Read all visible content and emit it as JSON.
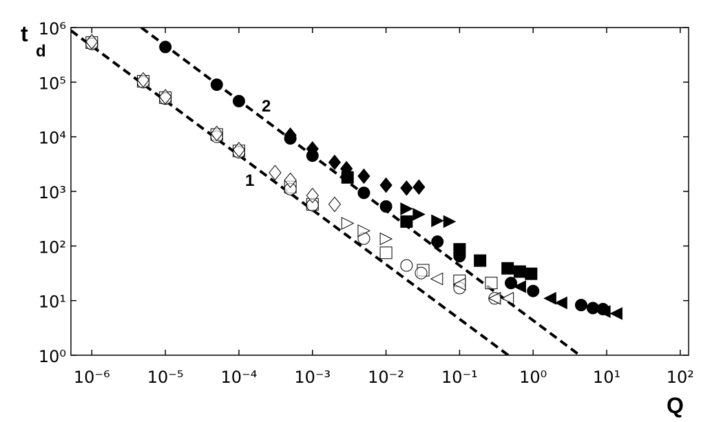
{
  "chart_data": {
    "type": "scatter",
    "xlabel": "Q",
    "ylabel": "t",
    "ylabel_sub": "d",
    "xscale": "log",
    "yscale": "log",
    "grid": false,
    "xlim": [
      5.2e-07,
      130
    ],
    "ylim": [
      1,
      1000000
    ],
    "xticks": [
      {
        "value": 1e-06,
        "label": "10⁻⁶"
      },
      {
        "value": 1e-05,
        "label": "10⁻⁵"
      },
      {
        "value": 0.0001,
        "label": "10⁻⁴"
      },
      {
        "value": 0.001,
        "label": "10⁻³"
      },
      {
        "value": 0.01,
        "label": "10⁻²"
      },
      {
        "value": 0.1,
        "label": "10⁻¹"
      },
      {
        "value": 1,
        "label": "10⁰"
      },
      {
        "value": 10,
        "label": "10¹"
      },
      {
        "value": 100,
        "label": "10²"
      }
    ],
    "yticks": [
      {
        "value": 1,
        "label": "10⁰"
      },
      {
        "value": 10,
        "label": "10¹"
      },
      {
        "value": 100,
        "label": "10²"
      },
      {
        "value": 1000,
        "label": "10³"
      },
      {
        "value": 10000,
        "label": "10⁴"
      },
      {
        "value": 100000,
        "label": "10⁵"
      },
      {
        "value": 1000000,
        "label": "10⁶"
      }
    ],
    "lines": [
      {
        "label": "1",
        "color": "#000000",
        "dashed": true,
        "x": [
          5.2e-07,
          0.46
        ],
        "values": [
          880000,
          1
        ]
      },
      {
        "label": "2",
        "color": "#000000",
        "dashed": true,
        "x": [
          4.7e-06,
          4.3
        ],
        "values": [
          1000000,
          1
        ]
      }
    ],
    "series": [
      {
        "marker": "square",
        "filled": false,
        "color": "#000000",
        "x": [
          1e-06,
          5e-06,
          1e-05,
          5e-05,
          0.0001,
          0.0005,
          0.001,
          0.01,
          0.032,
          0.1,
          0.27
        ],
        "values": [
          530000,
          104000,
          52000,
          11000,
          5500,
          1200,
          580,
          75,
          36,
          23,
          21
        ]
      },
      {
        "marker": "circle",
        "filled": false,
        "color": "#000000",
        "x": [
          1e-06,
          5e-06,
          1e-05,
          5e-05,
          0.0001,
          0.0005,
          0.001,
          0.005,
          0.019,
          0.03,
          0.1,
          0.3
        ],
        "values": [
          500000,
          100000,
          50000,
          10000,
          5200,
          1100,
          560,
          137,
          44,
          32,
          17,
          11
        ]
      },
      {
        "marker": "diamond",
        "filled": false,
        "color": "#000000",
        "x": [
          1e-06,
          5e-06,
          1e-05,
          5e-05,
          0.0001,
          0.00031,
          0.0005,
          0.001,
          0.002
        ],
        "values": [
          550000,
          110000,
          54000,
          11500,
          5800,
          2200,
          1600,
          840,
          580
        ]
      },
      {
        "marker": "triangle-right",
        "filled": false,
        "color": "#000000",
        "x": [
          0.003,
          0.005,
          0.01
        ],
        "values": [
          260,
          190,
          135
        ]
      },
      {
        "marker": "triangle-left",
        "filled": false,
        "color": "#000000",
        "x": [
          0.049,
          0.1,
          0.3,
          0.45
        ],
        "values": [
          25,
          20,
          11,
          11
        ]
      },
      {
        "marker": "circle",
        "filled": true,
        "color": "#000000",
        "x": [
          1e-05,
          5e-05,
          0.0001,
          0.0005,
          0.001,
          0.005,
          0.01,
          0.05,
          0.1,
          0.5,
          1,
          4.5,
          6.5,
          8.9
        ],
        "values": [
          440000,
          90000,
          45000,
          9300,
          4500,
          940,
          530,
          120,
          65,
          21,
          15,
          8.3,
          7.3,
          7
        ]
      },
      {
        "marker": "diamond",
        "filled": true,
        "color": "#000000",
        "x": [
          0.0005,
          0.001,
          0.002,
          0.0029,
          0.005,
          0.01,
          0.019,
          0.028
        ],
        "values": [
          10700,
          6000,
          3400,
          2600,
          1900,
          1300,
          1150,
          1200
        ]
      },
      {
        "marker": "square",
        "filled": true,
        "color": "#000000",
        "x": [
          0.003,
          0.019,
          0.1,
          0.19,
          0.45,
          0.66,
          0.94
        ],
        "values": [
          1800,
          280,
          87,
          54,
          39,
          34,
          31
        ]
      },
      {
        "marker": "triangle-right",
        "filled": true,
        "color": "#000000",
        "x": [
          0.019,
          0.028,
          0.05,
          0.073
        ],
        "values": [
          480,
          380,
          290,
          280
        ]
      },
      {
        "marker": "triangle-left",
        "filled": true,
        "color": "#000000",
        "x": [
          0.66,
          1.7,
          2.4,
          9.3,
          13.5
        ],
        "values": [
          18,
          11,
          9.1,
          6.3,
          5.8
        ]
      }
    ]
  }
}
